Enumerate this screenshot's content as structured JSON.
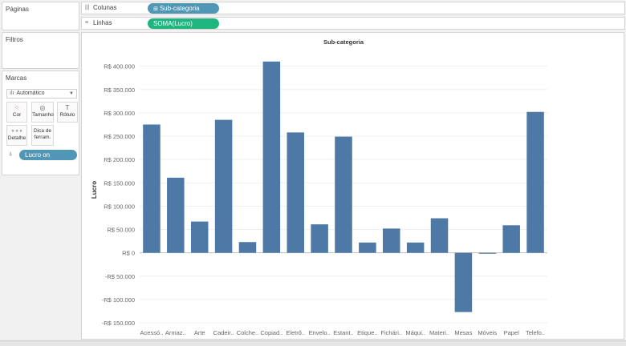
{
  "cards": {
    "paginas": "Páginas",
    "filtros": "Filtros",
    "marcas": "Marcas"
  },
  "marks": {
    "type_dropdown": "Automático",
    "buttons": [
      {
        "label": "Cor",
        "icon": "color-icon"
      },
      {
        "label": "Tamanho",
        "icon": "size-icon"
      },
      {
        "label": "Rótulo",
        "icon": "label-icon"
      },
      {
        "label": "Detalhe",
        "icon": "detail-icon"
      },
      {
        "label": "Dica de ferram.",
        "icon": "tooltip-icon"
      }
    ],
    "field_pill": "Lucro on"
  },
  "shelves": {
    "columns_label": "Colunas",
    "columns_pill": "Sub-categoria",
    "rows_label": "Linhas",
    "rows_pill": "SOMA(Lucro)"
  },
  "colors": {
    "bar": "#4e79a7",
    "columns_pill": "#4f97b4",
    "rows_pill": "#1eb57f"
  },
  "chart_data": {
    "type": "bar",
    "title": "Sub-categoria",
    "xlabel": "",
    "ylabel": "Lucro",
    "categories": [
      "Acessó..",
      "Armaz..",
      "Arte",
      "Cadeir..",
      "Colche..",
      "Copiad..",
      "Eletrô..",
      "Envelo..",
      "Estant..",
      "Etique..",
      "Fichári..",
      "Máqui..",
      "Materi..",
      "Mesas",
      "Móveis",
      "Papel",
      "Telefo.."
    ],
    "values": [
      275000,
      161000,
      67000,
      285000,
      23000,
      410000,
      258000,
      61000,
      249000,
      22000,
      52000,
      22000,
      74000,
      -127000,
      -2000,
      59000,
      302000
    ],
    "ylim": [
      -150000,
      420000
    ],
    "yticks": [
      -150000,
      -100000,
      -50000,
      0,
      50000,
      100000,
      150000,
      200000,
      250000,
      300000,
      350000,
      400000
    ],
    "ytick_labels": [
      "-R$ 150.000",
      "-R$ 100.000",
      "-R$ 50.000",
      "R$ 0",
      "R$ 50.000",
      "R$ 100.000",
      "R$ 150.000",
      "R$ 200.000",
      "R$ 250.000",
      "R$ 300.000",
      "R$ 350.000",
      "R$ 400.000"
    ],
    "grid": true
  }
}
